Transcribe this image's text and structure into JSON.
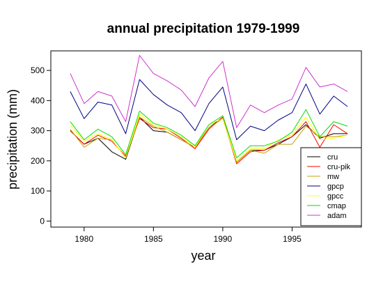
{
  "chart_data": {
    "type": "line",
    "title": "annual precipitation 1979-1999",
    "xlabel": "year",
    "ylabel": "precipitation (mm)",
    "x": [
      1979,
      1980,
      1981,
      1982,
      1983,
      1984,
      1985,
      1986,
      1987,
      1988,
      1989,
      1990,
      1991,
      1992,
      1993,
      1994,
      1995,
      1996,
      1997,
      1998,
      1999
    ],
    "xticks": [
      1980,
      1985,
      1990,
      1995
    ],
    "yticks": [
      0,
      100,
      200,
      300,
      400,
      500
    ],
    "xlim": [
      1977.6,
      2000
    ],
    "ylim": [
      -20,
      565
    ],
    "grid": false,
    "legend_position": "bottom-right",
    "series": [
      {
        "name": "cru",
        "color": "#000000",
        "values": [
          300,
          255,
          275,
          230,
          205,
          345,
          300,
          295,
          270,
          245,
          310,
          345,
          195,
          235,
          235,
          255,
          280,
          320,
          275,
          290,
          290
        ]
      },
      {
        "name": "cru-pik",
        "color": "#ff0000",
        "values": [
          300,
          255,
          285,
          265,
          215,
          340,
          310,
          305,
          275,
          240,
          305,
          345,
          190,
          230,
          235,
          260,
          280,
          330,
          245,
          320,
          290
        ]
      },
      {
        "name": "mw",
        "color": "#c8a000",
        "values": [
          305,
          245,
          275,
          270,
          210,
          345,
          315,
          295,
          270,
          245,
          310,
          340,
          195,
          235,
          225,
          255,
          255,
          315,
          280,
          280,
          285
        ]
      },
      {
        "name": "gpcp",
        "color": "#000080",
        "values": [
          430,
          340,
          395,
          385,
          290,
          470,
          420,
          385,
          360,
          300,
          390,
          445,
          270,
          315,
          300,
          335,
          360,
          455,
          355,
          415,
          380
        ]
      },
      {
        "name": "gpcc",
        "color": "#ffff00",
        "values": [
          320,
          265,
          290,
          270,
          210,
          355,
          320,
          305,
          280,
          245,
          320,
          340,
          200,
          240,
          240,
          270,
          285,
          345,
          270,
          275,
          285
        ]
      },
      {
        "name": "cmap",
        "color": "#00dd00",
        "values": [
          330,
          270,
          305,
          280,
          220,
          365,
          325,
          310,
          285,
          250,
          320,
          350,
          210,
          250,
          250,
          265,
          295,
          370,
          280,
          330,
          315
        ]
      },
      {
        "name": "adam",
        "color": "#cc33cc",
        "values": [
          490,
          390,
          430,
          415,
          330,
          550,
          490,
          465,
          435,
          380,
          475,
          530,
          310,
          385,
          360,
          385,
          405,
          510,
          445,
          455,
          430
        ]
      }
    ]
  }
}
